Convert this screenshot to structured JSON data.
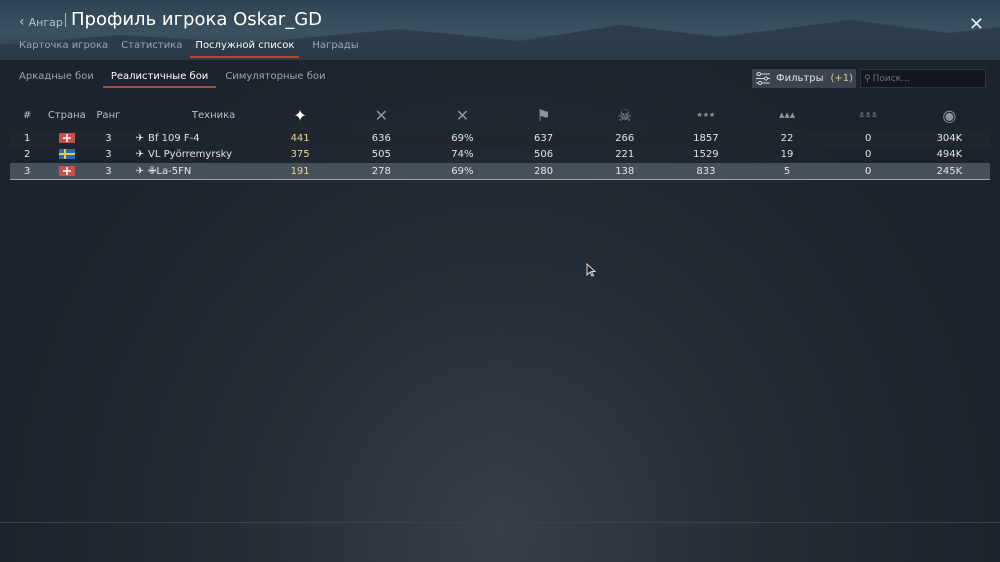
{
  "header": {
    "back_label": "Ангар",
    "title": "Профиль игрока Oskar_GD"
  },
  "tabs": [
    {
      "label": "Карточка игрока"
    },
    {
      "label": "Статистика"
    },
    {
      "label": "Послужной список",
      "active": true
    },
    {
      "label": "Награды"
    }
  ],
  "subtabs": [
    {
      "label": "Аркадные бои"
    },
    {
      "label": "Реалистичные бои",
      "active": true
    },
    {
      "label": "Симуляторные бои"
    }
  ],
  "filters": {
    "label": "Фильтры",
    "count": "(+1)"
  },
  "search": {
    "placeholder": "Поиск..."
  },
  "table": {
    "headers": [
      "#",
      "Страна",
      "Ранг",
      "Техника"
    ],
    "icon_columns": [
      "battles-icon",
      "victories-icon",
      "win-rate-icon",
      "respawns-icon",
      "deaths-icon",
      "air-kills-icon",
      "ground-kills-icon",
      "naval-kills-icon",
      "research-points-icon"
    ],
    "rows": [
      {
        "n": "1",
        "country": "germany",
        "rank": "3",
        "tech": "Bf 109 F-4",
        "v": [
          "441",
          "636",
          "69%",
          "637",
          "266",
          "1857",
          "22",
          "0",
          "304K"
        ]
      },
      {
        "n": "2",
        "country": "sweden",
        "rank": "3",
        "tech": "VL Pyörremyrsky",
        "v": [
          "375",
          "505",
          "74%",
          "506",
          "221",
          "1529",
          "19",
          "0",
          "494K"
        ]
      },
      {
        "n": "3",
        "country": "germany",
        "rank": "3",
        "tech": "✙La-5FN",
        "v": [
          "191",
          "278",
          "69%",
          "280",
          "138",
          "833",
          "5",
          "0",
          "245K"
        ],
        "selected": true
      }
    ]
  },
  "colors": {
    "accent": "#b2473a",
    "gold": "#e9d99a",
    "selected_row": "#46505a"
  }
}
